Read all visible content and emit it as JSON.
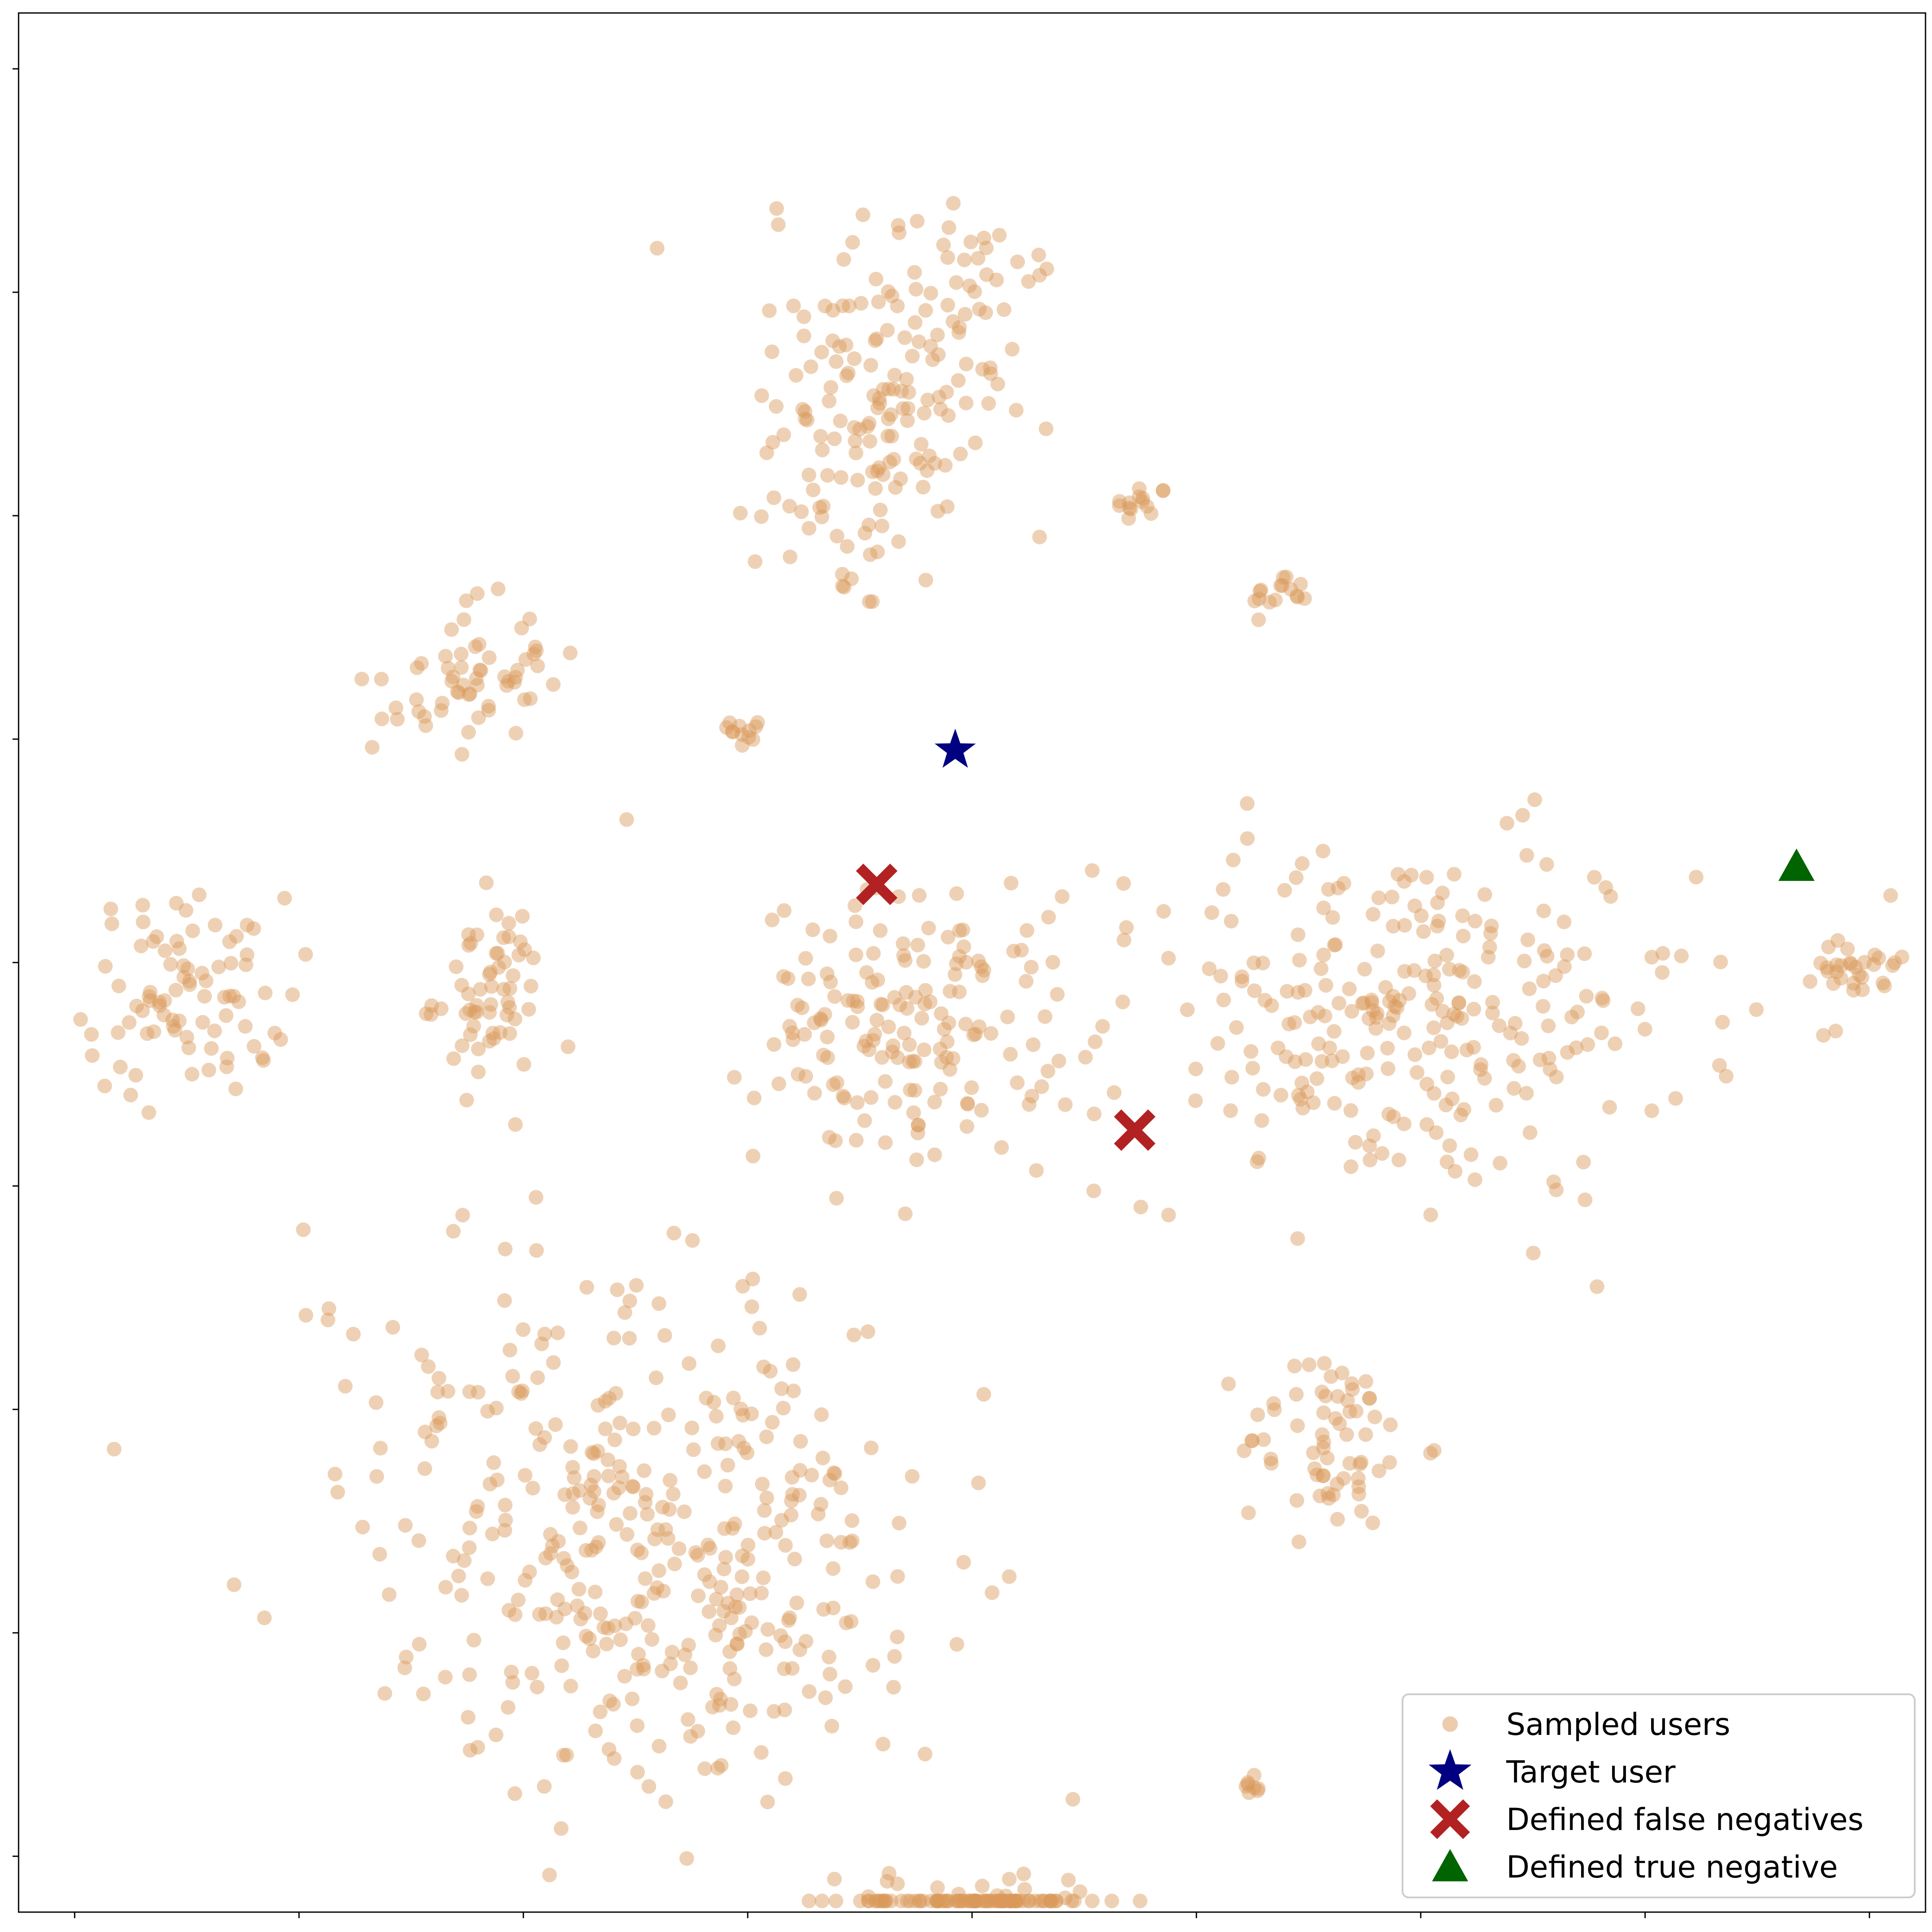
{
  "chart_data": {
    "type": "scatter",
    "title": "",
    "xlabel": "",
    "ylabel": "",
    "xlim": [
      -85,
      85
    ],
    "ylim": [
      -85,
      85
    ],
    "grid": false,
    "tick_labels": "none",
    "legend_placement": "lower-right",
    "colors": {
      "sampled": "#d9995a",
      "target": "#000080",
      "false_negative": "#b22222",
      "true_negative": "#006400"
    },
    "clusters": [
      {
        "name": "upper-center",
        "cx": -7,
        "cy": 51,
        "rx": 12,
        "ry": 21,
        "n": 190,
        "angle": -20
      },
      {
        "name": "upper-right-small",
        "cx": 15,
        "cy": 41,
        "rx": 2.5,
        "ry": 2,
        "n": 14,
        "angle": 0
      },
      {
        "name": "right-small",
        "cx": 27.5,
        "cy": 33,
        "rx": 2.5,
        "ry": 2,
        "n": 16,
        "angle": 0
      },
      {
        "name": "upper-left",
        "cx": -45,
        "cy": 25,
        "rx": 8,
        "ry": 6,
        "n": 60,
        "angle": 20
      },
      {
        "name": "mid-small",
        "cx": -20,
        "cy": 21,
        "rx": 1.5,
        "ry": 2,
        "n": 12,
        "angle": 0
      },
      {
        "name": "far-left",
        "cx": -70,
        "cy": -3,
        "rx": 9,
        "ry": 9,
        "n": 85,
        "angle": 0
      },
      {
        "name": "left-mid",
        "cx": -43,
        "cy": -3,
        "rx": 5,
        "ry": 8,
        "n": 60,
        "angle": 0
      },
      {
        "name": "center",
        "cx": -6,
        "cy": -6,
        "rx": 13,
        "ry": 12,
        "n": 160,
        "angle": 0
      },
      {
        "name": "mid-right",
        "cx": 38,
        "cy": -5,
        "rx": 26,
        "ry": 16,
        "n": 280,
        "angle": 0
      },
      {
        "name": "far-right",
        "cx": 79,
        "cy": 0,
        "rx": 3.5,
        "ry": 3.5,
        "n": 30,
        "angle": 0
      },
      {
        "name": "right-lower",
        "cx": 32,
        "cy": -43,
        "rx": 8,
        "ry": 8,
        "n": 65,
        "angle": 0
      },
      {
        "name": "lower-left",
        "cx": -28,
        "cy": -52,
        "rx": 27,
        "ry": 22,
        "n": 400,
        "angle": -38
      },
      {
        "name": "lower-right-small",
        "cx": 25,
        "cy": -74,
        "rx": 1.5,
        "ry": 1,
        "n": 8,
        "angle": 0
      },
      {
        "name": "bottom",
        "cx": 0,
        "cy": -87,
        "rx": 12,
        "ry": 6,
        "n": 110,
        "angle": 0
      }
    ],
    "special_points": {
      "target_user": {
        "x": -1.5,
        "y": 19
      },
      "false_negatives": [
        {
          "x": -8.5,
          "y": 7
        },
        {
          "x": 14.5,
          "y": -15
        }
      ],
      "true_negative": {
        "x": 73.5,
        "y": 8.5
      }
    },
    "legend": [
      {
        "label": "Sampled users",
        "marker": "circle",
        "color": "#d9995a"
      },
      {
        "label": "Target user",
        "marker": "star",
        "color": "#000080"
      },
      {
        "label": "Defined false negatives",
        "marker": "x",
        "color": "#b22222"
      },
      {
        "label": "Defined true negative",
        "marker": "triangle",
        "color": "#006400"
      }
    ]
  }
}
